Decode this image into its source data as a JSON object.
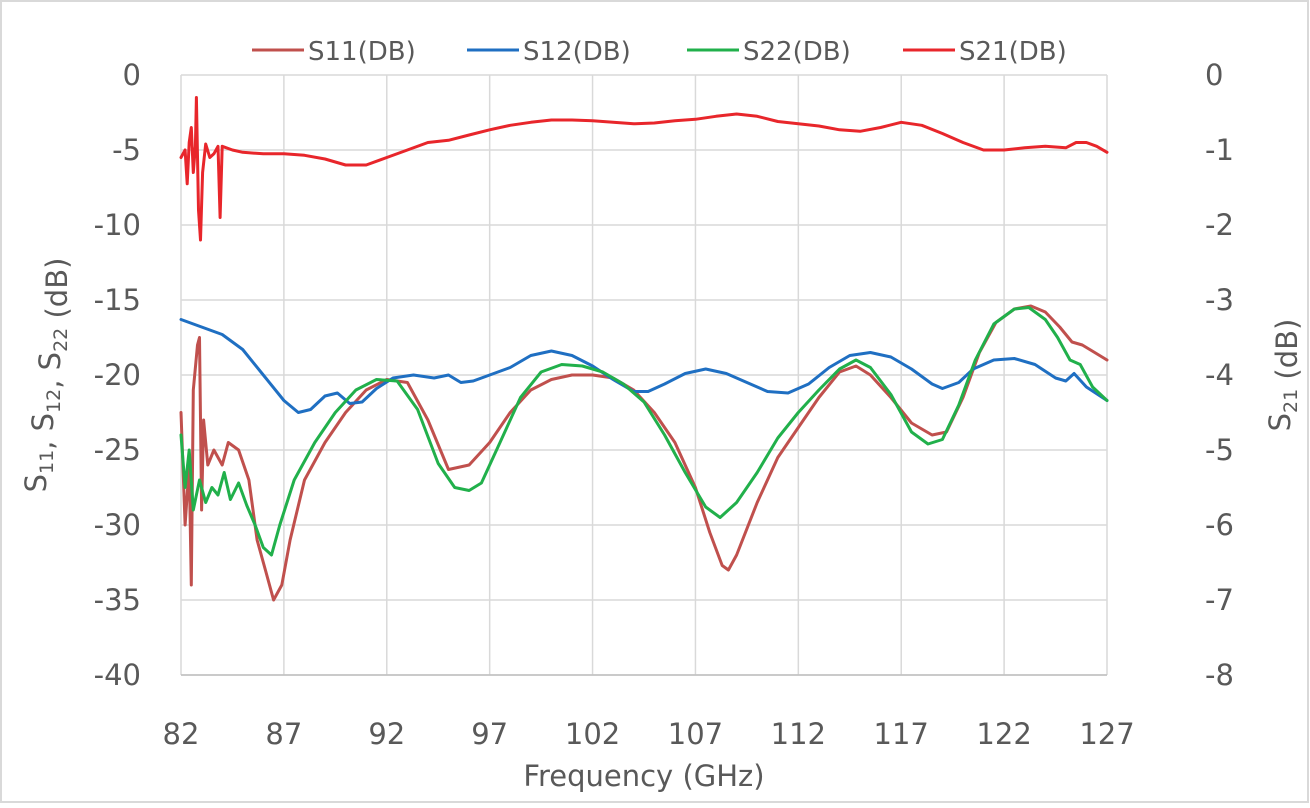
{
  "chart_data": {
    "type": "line",
    "xlabel": "Frequency (GHz)",
    "ylabel_left": "S11, S12, S22 (dB)",
    "ylabel_right": "S21 (dB)",
    "xlim": [
      82,
      127
    ],
    "ylim_left": [
      -40,
      0
    ],
    "ylim_right": [
      -8,
      0
    ],
    "x_ticks": [
      82,
      87,
      92,
      97,
      102,
      107,
      112,
      117,
      122,
      127
    ],
    "y_ticks_left": [
      0,
      -5,
      -10,
      -15,
      -20,
      -25,
      -30,
      -35,
      -40
    ],
    "y_ticks_right": [
      0,
      -1,
      -2,
      -3,
      -4,
      -5,
      -6,
      -7,
      -8
    ],
    "grid": true,
    "legend_position": "top",
    "series": [
      {
        "name": "S11(DB)",
        "axis": "left",
        "color": "#c0504d",
        "points": [
          [
            82.0,
            -22.5
          ],
          [
            82.2,
            -30
          ],
          [
            82.4,
            -26
          ],
          [
            82.5,
            -34
          ],
          [
            82.6,
            -21
          ],
          [
            82.8,
            -18
          ],
          [
            82.9,
            -17.5
          ],
          [
            83.0,
            -29
          ],
          [
            83.1,
            -23
          ],
          [
            83.3,
            -26
          ],
          [
            83.6,
            -25
          ],
          [
            84.0,
            -26
          ],
          [
            84.3,
            -24.5
          ],
          [
            84.8,
            -25
          ],
          [
            85.3,
            -27
          ],
          [
            85.7,
            -31
          ],
          [
            86.1,
            -33
          ],
          [
            86.5,
            -35
          ],
          [
            86.9,
            -34
          ],
          [
            87.3,
            -31
          ],
          [
            88.0,
            -27
          ],
          [
            89.0,
            -24.5
          ],
          [
            90.0,
            -22.5
          ],
          [
            91.0,
            -21
          ],
          [
            92.0,
            -20.3
          ],
          [
            93.0,
            -20.5
          ],
          [
            94.0,
            -23.0
          ],
          [
            95.0,
            -26.3
          ],
          [
            96.0,
            -26.0
          ],
          [
            97.0,
            -24.5
          ],
          [
            98.0,
            -22.5
          ],
          [
            99.0,
            -21
          ],
          [
            100.0,
            -20.3
          ],
          [
            101.0,
            -20.0
          ],
          [
            102.0,
            -20.0
          ],
          [
            103.0,
            -20.2
          ],
          [
            104.0,
            -21
          ],
          [
            105.0,
            -22.5
          ],
          [
            106.0,
            -24.5
          ],
          [
            107.0,
            -27.5
          ],
          [
            107.7,
            -30.5
          ],
          [
            108.3,
            -32.7
          ],
          [
            108.6,
            -33
          ],
          [
            109.0,
            -32
          ],
          [
            110.0,
            -28.5
          ],
          [
            111.0,
            -25.5
          ],
          [
            112.0,
            -23.5
          ],
          [
            113.0,
            -21.5
          ],
          [
            114.0,
            -19.8
          ],
          [
            114.8,
            -19.4
          ],
          [
            115.5,
            -20.0
          ],
          [
            116.5,
            -21.5
          ],
          [
            117.5,
            -23.2
          ],
          [
            118.5,
            -24
          ],
          [
            119.2,
            -23.8
          ],
          [
            120.0,
            -21.5
          ],
          [
            120.8,
            -18.5
          ],
          [
            121.6,
            -16.5
          ],
          [
            122.5,
            -15.6
          ],
          [
            123.3,
            -15.4
          ],
          [
            124.0,
            -15.8
          ],
          [
            124.7,
            -16.8
          ],
          [
            125.3,
            -17.8
          ],
          [
            125.8,
            -18.0
          ],
          [
            126.4,
            -18.5
          ],
          [
            127.0,
            -19.0
          ]
        ]
      },
      {
        "name": "S12(DB)",
        "axis": "left",
        "color": "#1f6fc2",
        "points": [
          [
            82.0,
            -16.3
          ],
          [
            83.0,
            -16.8
          ],
          [
            84.0,
            -17.3
          ],
          [
            85.0,
            -18.3
          ],
          [
            86.0,
            -20
          ],
          [
            87.0,
            -21.7
          ],
          [
            87.7,
            -22.5
          ],
          [
            88.3,
            -22.3
          ],
          [
            89.0,
            -21.4
          ],
          [
            89.6,
            -21.2
          ],
          [
            90.2,
            -21.9
          ],
          [
            90.8,
            -21.8
          ],
          [
            91.5,
            -20.9
          ],
          [
            92.3,
            -20.2
          ],
          [
            93.3,
            -20.0
          ],
          [
            94.3,
            -20.2
          ],
          [
            95.0,
            -20.0
          ],
          [
            95.6,
            -20.5
          ],
          [
            96.2,
            -20.4
          ],
          [
            97.0,
            -20.0
          ],
          [
            98.0,
            -19.5
          ],
          [
            99.0,
            -18.7
          ],
          [
            100.0,
            -18.4
          ],
          [
            101.0,
            -18.7
          ],
          [
            102.0,
            -19.4
          ],
          [
            103.0,
            -20.3
          ],
          [
            104.0,
            -21.1
          ],
          [
            104.7,
            -21.1
          ],
          [
            105.5,
            -20.6
          ],
          [
            106.5,
            -19.9
          ],
          [
            107.5,
            -19.6
          ],
          [
            108.5,
            -19.9
          ],
          [
            109.5,
            -20.5
          ],
          [
            110.5,
            -21.1
          ],
          [
            111.5,
            -21.2
          ],
          [
            112.5,
            -20.6
          ],
          [
            113.5,
            -19.5
          ],
          [
            114.5,
            -18.7
          ],
          [
            115.5,
            -18.5
          ],
          [
            116.5,
            -18.8
          ],
          [
            117.5,
            -19.6
          ],
          [
            118.5,
            -20.6
          ],
          [
            119.0,
            -20.9
          ],
          [
            119.8,
            -20.5
          ],
          [
            120.5,
            -19.6
          ],
          [
            121.5,
            -19.0
          ],
          [
            122.5,
            -18.9
          ],
          [
            123.5,
            -19.3
          ],
          [
            124.5,
            -20.2
          ],
          [
            125.0,
            -20.4
          ],
          [
            125.4,
            -19.9
          ],
          [
            126.0,
            -20.8
          ],
          [
            127.0,
            -21.7
          ]
        ]
      },
      {
        "name": "S22(DB)",
        "axis": "left",
        "color": "#21b04b",
        "points": [
          [
            82.0,
            -24.0
          ],
          [
            82.2,
            -27.5
          ],
          [
            82.4,
            -25
          ],
          [
            82.6,
            -29
          ],
          [
            82.9,
            -27
          ],
          [
            83.2,
            -28.5
          ],
          [
            83.5,
            -27.5
          ],
          [
            83.8,
            -28
          ],
          [
            84.1,
            -26.5
          ],
          [
            84.4,
            -28.3
          ],
          [
            84.8,
            -27.2
          ],
          [
            85.2,
            -28.7
          ],
          [
            85.6,
            -30
          ],
          [
            86.0,
            -31.5
          ],
          [
            86.4,
            -32
          ],
          [
            86.8,
            -30
          ],
          [
            87.5,
            -27
          ],
          [
            88.5,
            -24.5
          ],
          [
            89.5,
            -22.5
          ],
          [
            90.5,
            -21
          ],
          [
            91.5,
            -20.3
          ],
          [
            92.5,
            -20.4
          ],
          [
            93.5,
            -22.3
          ],
          [
            94.5,
            -25.9
          ],
          [
            95.3,
            -27.5
          ],
          [
            96.0,
            -27.7
          ],
          [
            96.6,
            -27.2
          ],
          [
            97.5,
            -24.5
          ],
          [
            98.5,
            -21.5
          ],
          [
            99.5,
            -19.8
          ],
          [
            100.5,
            -19.3
          ],
          [
            101.5,
            -19.4
          ],
          [
            102.5,
            -19.8
          ],
          [
            103.5,
            -20.6
          ],
          [
            104.5,
            -21.8
          ],
          [
            105.5,
            -24
          ],
          [
            106.5,
            -26.5
          ],
          [
            107.5,
            -28.8
          ],
          [
            108.2,
            -29.5
          ],
          [
            109.0,
            -28.5
          ],
          [
            110.0,
            -26.5
          ],
          [
            111.0,
            -24.2
          ],
          [
            112.0,
            -22.5
          ],
          [
            113.0,
            -21
          ],
          [
            114.0,
            -19.6
          ],
          [
            114.8,
            -19.0
          ],
          [
            115.5,
            -19.5
          ],
          [
            116.5,
            -21.3
          ],
          [
            117.5,
            -23.8
          ],
          [
            118.3,
            -24.6
          ],
          [
            119.0,
            -24.3
          ],
          [
            119.8,
            -22
          ],
          [
            120.6,
            -19
          ],
          [
            121.5,
            -16.6
          ],
          [
            122.5,
            -15.6
          ],
          [
            123.2,
            -15.5
          ],
          [
            124.0,
            -16.3
          ],
          [
            124.6,
            -17.5
          ],
          [
            125.2,
            -19.0
          ],
          [
            125.7,
            -19.3
          ],
          [
            126.3,
            -20.8
          ],
          [
            127.0,
            -21.7
          ]
        ]
      },
      {
        "name": "S21(DB)",
        "axis": "right",
        "color": "#e8262b",
        "points": [
          [
            82.0,
            -1.1
          ],
          [
            82.2,
            -1.0
          ],
          [
            82.3,
            -1.45
          ],
          [
            82.4,
            -0.9
          ],
          [
            82.5,
            -0.7
          ],
          [
            82.6,
            -1.3
          ],
          [
            82.7,
            -0.95
          ],
          [
            82.75,
            -0.3
          ],
          [
            82.85,
            -1.8
          ],
          [
            82.95,
            -2.2
          ],
          [
            83.05,
            -1.3
          ],
          [
            83.2,
            -0.92
          ],
          [
            83.4,
            -1.1
          ],
          [
            83.6,
            -1.05
          ],
          [
            83.8,
            -0.95
          ],
          [
            83.9,
            -1.9
          ],
          [
            84.0,
            -0.95
          ],
          [
            84.5,
            -1.0
          ],
          [
            85.0,
            -1.03
          ],
          [
            86.0,
            -1.05
          ],
          [
            87.0,
            -1.05
          ],
          [
            88.0,
            -1.07
          ],
          [
            89.0,
            -1.12
          ],
          [
            90.0,
            -1.2
          ],
          [
            91.0,
            -1.2
          ],
          [
            92.0,
            -1.1
          ],
          [
            93.0,
            -1.0
          ],
          [
            94.0,
            -0.9
          ],
          [
            95.0,
            -0.87
          ],
          [
            96.0,
            -0.8
          ],
          [
            97.0,
            -0.73
          ],
          [
            98.0,
            -0.67
          ],
          [
            99.0,
            -0.63
          ],
          [
            100.0,
            -0.6
          ],
          [
            101.0,
            -0.6
          ],
          [
            102.0,
            -0.61
          ],
          [
            103.0,
            -0.63
          ],
          [
            104.0,
            -0.65
          ],
          [
            105.0,
            -0.64
          ],
          [
            106.0,
            -0.61
          ],
          [
            107.0,
            -0.59
          ],
          [
            108.0,
            -0.55
          ],
          [
            109.0,
            -0.52
          ],
          [
            110.0,
            -0.55
          ],
          [
            111.0,
            -0.62
          ],
          [
            112.0,
            -0.65
          ],
          [
            113.0,
            -0.68
          ],
          [
            114.0,
            -0.73
          ],
          [
            115.0,
            -0.75
          ],
          [
            116.0,
            -0.7
          ],
          [
            117.0,
            -0.63
          ],
          [
            118.0,
            -0.67
          ],
          [
            119.0,
            -0.78
          ],
          [
            120.0,
            -0.9
          ],
          [
            121.0,
            -1.0
          ],
          [
            122.0,
            -1.0
          ],
          [
            123.0,
            -0.97
          ],
          [
            124.0,
            -0.95
          ],
          [
            125.0,
            -0.97
          ],
          [
            125.5,
            -0.9
          ],
          [
            126.0,
            -0.9
          ],
          [
            126.5,
            -0.95
          ],
          [
            127.0,
            -1.03
          ]
        ]
      }
    ]
  }
}
